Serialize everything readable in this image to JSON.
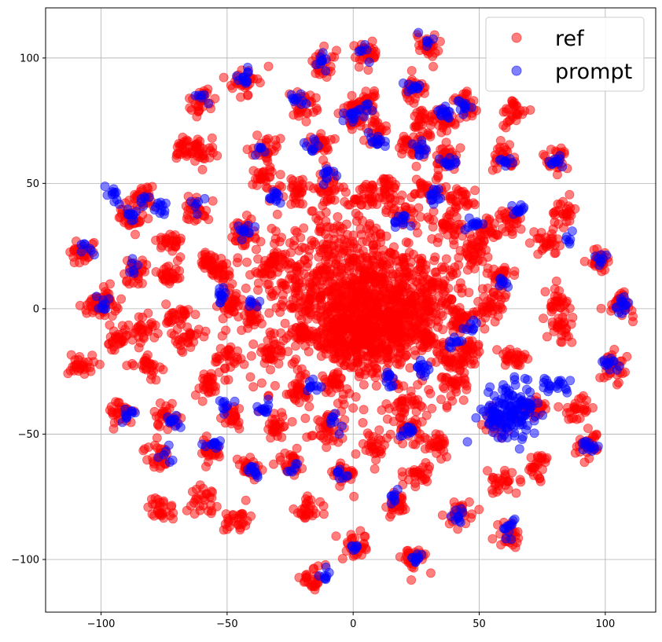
{
  "chart_data": {
    "type": "scatter",
    "title": "",
    "xlabel": "",
    "ylabel": "",
    "xlim": [
      -122,
      120
    ],
    "ylim": [
      -121,
      120
    ],
    "xticks": [
      -100,
      -50,
      0,
      50,
      100
    ],
    "yticks": [
      -100,
      -50,
      0,
      50,
      100
    ],
    "grid": true,
    "legend_position": "top-right",
    "series": [
      {
        "name": "ref",
        "color": "#ff0000",
        "alpha": 0.5,
        "center_blob": [
          [
            -12,
            15,
            14
          ],
          [
            8,
            8,
            12
          ],
          [
            25,
            2,
            10
          ],
          [
            -5,
            -8,
            10
          ],
          [
            10,
            -10,
            9
          ]
        ],
        "clusters": [
          [
            -107,
            23
          ],
          [
            -102,
            1
          ],
          [
            -98,
            3
          ],
          [
            -108,
            -22
          ],
          [
            -93,
            -13
          ],
          [
            -92,
            -41
          ],
          [
            -84,
            44
          ],
          [
            -88,
            36
          ],
          [
            -87,
            15
          ],
          [
            -83,
            -8
          ],
          [
            -82,
            -22
          ],
          [
            -76,
            -80
          ],
          [
            -78,
            -59
          ],
          [
            -74,
            -42
          ],
          [
            -73,
            13
          ],
          [
            -73,
            26
          ],
          [
            -69,
            -3
          ],
          [
            -66,
            -12
          ],
          [
            -66,
            64
          ],
          [
            -60,
            63
          ],
          [
            -60,
            83
          ],
          [
            -62,
            40
          ],
          [
            -58,
            18
          ],
          [
            -58,
            -30
          ],
          [
            -57,
            -57
          ],
          [
            -59,
            -76
          ],
          [
            -52,
            15
          ],
          [
            -48,
            2
          ],
          [
            -50,
            -20
          ],
          [
            -48,
            -43
          ],
          [
            -46,
            -84
          ],
          [
            -43,
            91
          ],
          [
            -44,
            30
          ],
          [
            -42,
            -64
          ],
          [
            -40,
            -3
          ],
          [
            -35,
            52
          ],
          [
            -34,
            63
          ],
          [
            -33,
            18
          ],
          [
            -33,
            -18
          ],
          [
            -30,
            -47
          ],
          [
            -25,
            -61
          ],
          [
            -20,
            81
          ],
          [
            -22,
            47
          ],
          [
            -20,
            -10
          ],
          [
            -22,
            -34
          ],
          [
            -18,
            -80
          ],
          [
            -16,
            -108
          ],
          [
            -12,
            98
          ],
          [
            -13,
            65
          ],
          [
            -10,
            48
          ],
          [
            -8,
            -30
          ],
          [
            -10,
            -48
          ],
          [
            -4,
            -66
          ],
          [
            1,
            -95
          ],
          [
            0,
            76
          ],
          [
            3,
            -10
          ],
          [
            4,
            44
          ],
          [
            5,
            102
          ],
          [
            6,
            82
          ],
          [
            9,
            71
          ],
          [
            8,
            -55
          ],
          [
            13,
            48
          ],
          [
            17,
            -78
          ],
          [
            20,
            38
          ],
          [
            20,
            -38
          ],
          [
            23,
            64
          ],
          [
            22,
            -48
          ],
          [
            24,
            88
          ],
          [
            24,
            -100
          ],
          [
            26,
            -66
          ],
          [
            27,
            74
          ],
          [
            28,
            -11
          ],
          [
            30,
            105
          ],
          [
            30,
            48
          ],
          [
            34,
            -54
          ],
          [
            37,
            60
          ],
          [
            38,
            32
          ],
          [
            36,
            75
          ],
          [
            39,
            -20
          ],
          [
            40,
            -30
          ],
          [
            42,
            -81
          ],
          [
            43,
            43
          ],
          [
            43,
            -5
          ],
          [
            45,
            81
          ],
          [
            46,
            -17
          ],
          [
            48,
            22
          ],
          [
            55,
            1
          ],
          [
            52,
            30
          ],
          [
            57,
            -45
          ],
          [
            58,
            -70
          ],
          [
            59,
            13
          ],
          [
            60,
            60
          ],
          [
            62,
            35
          ],
          [
            62,
            -90
          ],
          [
            64,
            -20
          ],
          [
            64,
            78
          ],
          [
            72,
            -40
          ],
          [
            73,
            -63
          ],
          [
            80,
            60
          ],
          [
            77,
            27
          ],
          [
            81,
            3
          ],
          [
            82,
            -8
          ],
          [
            84,
            39
          ],
          [
            89,
            -40
          ],
          [
            94,
            -54
          ],
          [
            98,
            20
          ],
          [
            103,
            -23
          ],
          [
            106,
            2
          ]
        ]
      },
      {
        "name": "prompt",
        "color": "#0000ff",
        "alpha": 0.5,
        "spread_cluster": [
          63,
          -42,
          5
        ],
        "clusters": [
          [
            -106,
            24
          ],
          [
            -100,
            2
          ],
          [
            -96,
            45
          ],
          [
            -88,
            37
          ],
          [
            -87,
            16
          ],
          [
            -82,
            43
          ],
          [
            -90,
            -42
          ],
          [
            -76,
            40
          ],
          [
            -74,
            -58
          ],
          [
            -71,
            -46
          ],
          [
            -62,
            42
          ],
          [
            -60,
            84
          ],
          [
            -55,
            -54
          ],
          [
            -52,
            5
          ],
          [
            -50,
            -38
          ],
          [
            -43,
            91
          ],
          [
            -43,
            31
          ],
          [
            -40,
            -64
          ],
          [
            -40,
            2
          ],
          [
            -36,
            65
          ],
          [
            -35,
            -40
          ],
          [
            -31,
            44
          ],
          [
            -23,
            -63
          ],
          [
            -22,
            83
          ],
          [
            -16,
            -31
          ],
          [
            -15,
            64
          ],
          [
            -13,
            99
          ],
          [
            -12,
            -107
          ],
          [
            -10,
            54
          ],
          [
            -8,
            -45
          ],
          [
            -5,
            -66
          ],
          [
            -1,
            77
          ],
          [
            1,
            -95
          ],
          [
            5,
            103
          ],
          [
            5,
            80
          ],
          [
            10,
            67
          ],
          [
            15,
            -28
          ],
          [
            16,
            -75
          ],
          [
            19,
            35
          ],
          [
            22,
            -48
          ],
          [
            24,
            89
          ],
          [
            25,
            -99
          ],
          [
            26,
            64
          ],
          [
            27,
            -23
          ],
          [
            30,
            107
          ],
          [
            32,
            45
          ],
          [
            36,
            78
          ],
          [
            38,
            58
          ],
          [
            40,
            -13
          ],
          [
            41,
            -82
          ],
          [
            44,
            82
          ],
          [
            47,
            -7
          ],
          [
            49,
            33
          ],
          [
            55,
            -44
          ],
          [
            59,
            10
          ],
          [
            61,
            59
          ],
          [
            62,
            -88
          ],
          [
            66,
            39
          ],
          [
            77,
            -30
          ],
          [
            80,
            59
          ],
          [
            83,
            -30
          ],
          [
            85,
            27
          ],
          [
            94,
            -55
          ],
          [
            98,
            20
          ],
          [
            102,
            -22
          ],
          [
            107,
            2
          ]
        ]
      }
    ]
  }
}
